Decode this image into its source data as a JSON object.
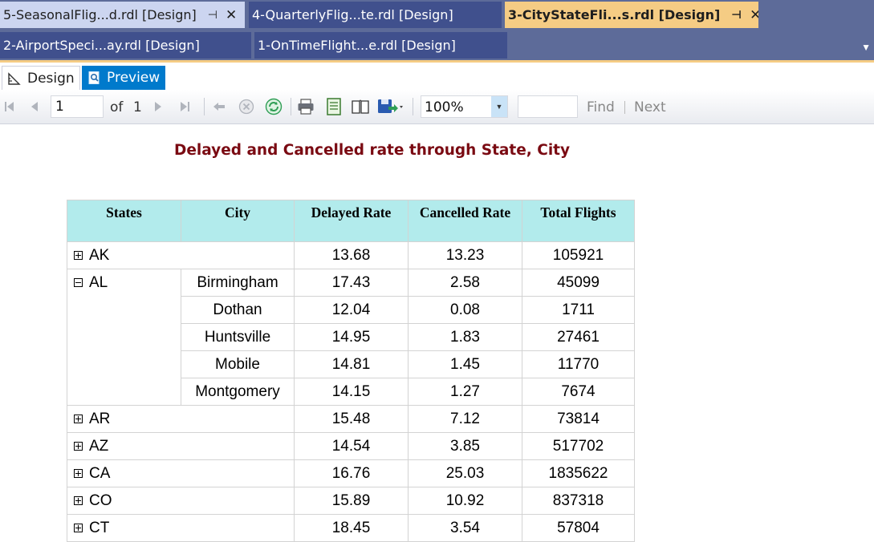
{
  "tabs": {
    "row1": [
      {
        "label": "5-SeasonalFlig...d.rdl [Design]",
        "state": "pale",
        "pin": true
      },
      {
        "label": "4-QuarterlyFlig...te.rdl [Design]",
        "state": "inactive",
        "pin": false
      },
      {
        "label": "3-CityStateFli...s.rdl [Design]",
        "state": "active",
        "pin": true
      }
    ],
    "row2": [
      {
        "label": "2-AirportSpeci...ay.rdl [Design]",
        "state": "inactive",
        "pin": false
      },
      {
        "label": "1-OnTimeFlight...e.rdl [Design]",
        "state": "inactive",
        "pin": false
      }
    ],
    "pin_glyph": "⊣",
    "close_glyph": "✕",
    "overflow_glyph": "▼"
  },
  "view": {
    "design_label": "Design",
    "preview_label": "Preview"
  },
  "toolbar": {
    "page_current": "1",
    "of_label": "of",
    "page_total": "1",
    "zoom": "100%",
    "find_label": "Find",
    "next_label": "Next",
    "icons": [
      "first-page-icon",
      "previous-page-icon",
      "next-page-icon",
      "last-page-icon",
      "back-icon",
      "stop-icon",
      "refresh-icon",
      "print-icon",
      "print-layout-icon",
      "page-setup-icon",
      "export-icon"
    ]
  },
  "report": {
    "title": "Delayed and Cancelled rate through State, City",
    "columns": [
      "States",
      "City",
      "Delayed Rate",
      "Cancelled Rate",
      "Total Flights"
    ],
    "groups": [
      {
        "state": "AK",
        "expanded": false,
        "delayed": "13.68",
        "cancelled": "13.23",
        "total": "105921"
      },
      {
        "state": "AL",
        "expanded": true,
        "cities": [
          {
            "city": "Birmingham",
            "delayed": "17.43",
            "cancelled": "2.58",
            "total": "45099"
          },
          {
            "city": "Dothan",
            "delayed": "12.04",
            "cancelled": "0.08",
            "total": "1711"
          },
          {
            "city": "Huntsville",
            "delayed": "14.95",
            "cancelled": "1.83",
            "total": "27461"
          },
          {
            "city": "Mobile",
            "delayed": "14.81",
            "cancelled": "1.45",
            "total": "11770"
          },
          {
            "city": "Montgomery",
            "delayed": "14.15",
            "cancelled": "1.27",
            "total": "7674"
          }
        ]
      },
      {
        "state": "AR",
        "expanded": false,
        "delayed": "15.48",
        "cancelled": "7.12",
        "total": "73814"
      },
      {
        "state": "AZ",
        "expanded": false,
        "delayed": "14.54",
        "cancelled": "3.85",
        "total": "517702"
      },
      {
        "state": "CA",
        "expanded": false,
        "delayed": "16.76",
        "cancelled": "25.03",
        "total": "1835622"
      },
      {
        "state": "CO",
        "expanded": false,
        "delayed": "15.89",
        "cancelled": "10.92",
        "total": "837318"
      },
      {
        "state": "CT",
        "expanded": false,
        "delayed": "18.45",
        "cancelled": "3.54",
        "total": "57804"
      }
    ]
  }
}
